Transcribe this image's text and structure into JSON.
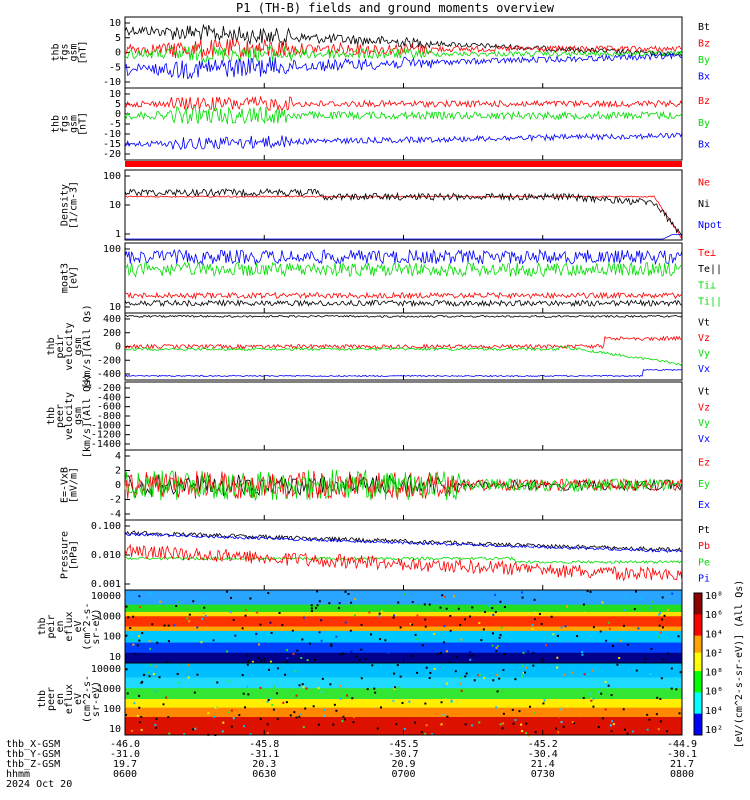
{
  "title": "P1 (TH-B) fields and ground moments overview",
  "colors": {
    "black": "#000000",
    "red": "#ff0000",
    "green": "#00dd00",
    "blue": "#0000ff"
  },
  "panels": [
    {
      "id": "fgs",
      "ylabel": [
        "thb",
        "fgs",
        "gsm",
        "[nT]"
      ],
      "yticks": [
        "10",
        "5",
        "0",
        "-5",
        "-10"
      ],
      "ylim": [
        -12,
        12
      ],
      "legend": [
        {
          "text": "Bt",
          "color": "black"
        },
        {
          "text": "Bz",
          "color": "red"
        },
        {
          "text": "By",
          "color": "green"
        },
        {
          "text": "Bx",
          "color": "blue"
        }
      ]
    },
    {
      "id": "fgs_dsl",
      "ylabel": [
        "thb",
        "fgs",
        "gsm",
        "[nT]"
      ],
      "yticks": [
        "10",
        "5",
        "0",
        "-5",
        "-10",
        "-15",
        "-20"
      ],
      "ylim": [
        -22,
        12
      ],
      "legend": [
        {
          "text": "Bz",
          "color": "red"
        },
        {
          "text": "By",
          "color": "green"
        },
        {
          "text": "Bx",
          "color": "blue"
        }
      ]
    },
    {
      "id": "density",
      "ylabel": [
        "Density",
        "[1/cm-3]"
      ],
      "yticks": [
        "100",
        "10",
        "1"
      ],
      "ylim": [
        0.3,
        200
      ],
      "log": true,
      "legend": [
        {
          "text": "Ne",
          "color": "red"
        },
        {
          "text": "Ni",
          "color": "black"
        },
        {
          "text": "Npot",
          "color": "blue"
        }
      ]
    },
    {
      "id": "temp",
      "ylabel": [
        "moat3",
        "[eV]"
      ],
      "yticks": [
        "100",
        "10"
      ],
      "ylim": [
        8,
        400
      ],
      "log": true,
      "legend": [
        {
          "text": "Te⊥",
          "color": "red"
        },
        {
          "text": "Te||",
          "color": "black"
        },
        {
          "text": "Ti⊥",
          "color": "green"
        },
        {
          "text": "Ti||",
          "color": "green"
        }
      ]
    },
    {
      "id": "vel1",
      "ylabel": [
        "thb",
        "peir",
        "velocity",
        "gsm",
        "[km/s](All Qs)"
      ],
      "yticks": [
        "400",
        "200",
        "0",
        "-200",
        "-400"
      ],
      "ylim": [
        -450,
        450
      ],
      "legend": [
        {
          "text": "Vt",
          "color": "black"
        },
        {
          "text": "Vz",
          "color": "red"
        },
        {
          "text": "Vy",
          "color": "green"
        },
        {
          "text": "Vx",
          "color": "blue"
        }
      ]
    },
    {
      "id": "vel2",
      "ylabel": [
        "thb",
        "peer",
        "velocity",
        "gsm",
        "[km/s](All Qs)"
      ],
      "yticks": [
        "-200",
        "-400",
        "-600",
        "-800",
        "-1000",
        "-1200",
        "-1400"
      ],
      "ylim": [
        -1500,
        -120
      ],
      "legend": [
        {
          "text": "Vt",
          "color": "black"
        },
        {
          "text": "Vz",
          "color": "red"
        },
        {
          "text": "Vy",
          "color": "green"
        },
        {
          "text": "Vx",
          "color": "blue"
        }
      ]
    },
    {
      "id": "efield",
      "ylabel": [
        "E=-VxB",
        "[mV/m]"
      ],
      "yticks": [
        "4",
        "2",
        "0",
        "-2",
        "-4"
      ],
      "ylim": [
        -4.5,
        4.5
      ],
      "legend": [
        {
          "text": "Ez",
          "color": "red"
        },
        {
          "text": "Ey",
          "color": "green"
        },
        {
          "text": "Ex",
          "color": "blue"
        }
      ]
    },
    {
      "id": "pressure",
      "ylabel": [
        "Pressure",
        "[nPa]"
      ],
      "yticks": [
        "0.100",
        "0.010",
        "0.001"
      ],
      "ylim": [
        0.0003,
        0.3
      ],
      "log": true,
      "legend": [
        {
          "text": "Pt",
          "color": "black"
        },
        {
          "text": "Pb",
          "color": "red"
        },
        {
          "text": "Pe",
          "color": "green"
        },
        {
          "text": "Pi",
          "color": "blue"
        }
      ]
    },
    {
      "id": "ion_spec",
      "ylabel": [
        "thb",
        "peir",
        "en",
        "eflux",
        "eV",
        "(cm^2-s-",
        "sr-eV)"
      ],
      "yticks": [
        "10000",
        "1000",
        "100",
        "10"
      ]
    },
    {
      "id": "elec_spec",
      "ylabel": [
        "thb",
        "peer",
        "en",
        "eflux",
        "eV",
        "(cm^2-s-",
        "sr-eV)"
      ],
      "yticks": [
        "10000",
        "1000",
        "100",
        "10"
      ]
    }
  ],
  "colorbar": {
    "label": "[eV/(cm^2-s-sr-eV)] (All Qs)",
    "ticks": [
      "10⁸",
      "10⁶",
      "10⁴",
      "10²",
      "10⁸",
      "10⁶",
      "10⁴",
      "10²"
    ]
  },
  "footer": {
    "rows": [
      {
        "label": "thb_X-GSM",
        "values": [
          "-46.0",
          "-45.8",
          "-45.5",
          "-45.2",
          "-44.9"
        ]
      },
      {
        "label": "thb_Y-GSM",
        "values": [
          "-31.0",
          "-31.1",
          "-30.7",
          "-30.4",
          "-30.1"
        ]
      },
      {
        "label": "thb_Z-GSM",
        "values": [
          "19.7",
          "20.3",
          "20.9",
          "21.4",
          "21.7"
        ]
      },
      {
        "label": "hhmm",
        "values": [
          "0600",
          "0630",
          "0700",
          "0730",
          "0800"
        ]
      }
    ],
    "date": "2024 Oct 20"
  },
  "chart_data": {
    "type": "line",
    "title": "P1 (TH-B) fields and ground moments overview",
    "x": [
      "0600",
      "0630",
      "0700",
      "0730",
      "0800"
    ],
    "series": [
      {
        "name": "Bt",
        "panel": "fgs",
        "values": [
          7,
          9,
          6,
          4,
          2
        ]
      },
      {
        "name": "Bz",
        "panel": "fgs",
        "values": [
          2,
          3,
          1,
          1,
          0
        ]
      },
      {
        "name": "By",
        "panel": "fgs",
        "values": [
          1,
          2,
          1,
          0,
          -1
        ]
      },
      {
        "name": "Bx",
        "panel": "fgs",
        "values": [
          -5,
          -6,
          -4,
          -2,
          -1
        ]
      },
      {
        "name": "Ne",
        "panel": "density",
        "values": [
          10,
          10,
          10,
          10,
          0.5
        ]
      },
      {
        "name": "Ni",
        "panel": "density",
        "values": [
          15,
          12,
          10,
          6,
          0.5
        ]
      },
      {
        "name": "Vx",
        "panel": "vel1",
        "values": [
          -400,
          -400,
          -390,
          -380,
          -250
        ]
      },
      {
        "name": "Pt",
        "panel": "pressure",
        "values": [
          0.08,
          0.15,
          0.1,
          0.06,
          0.01
        ]
      },
      {
        "name": "Pb",
        "panel": "pressure",
        "values": [
          0.02,
          0.03,
          0.015,
          0.005,
          0.002
        ]
      }
    ]
  }
}
